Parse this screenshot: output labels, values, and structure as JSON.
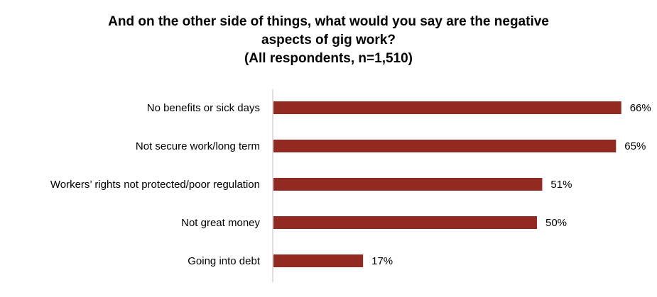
{
  "chart_data": {
    "type": "bar",
    "orientation": "horizontal",
    "title_lines": [
      "And on the other side of things, what would you say are the negative",
      "aspects of gig work?",
      "(All respondents, n=1,510)"
    ],
    "categories": [
      "No benefits or sick days",
      "Not secure work/long term",
      "Workers’ rights not protected/poor regulation",
      "Not great money",
      "Going into debt"
    ],
    "values": [
      66,
      65,
      51,
      50,
      17
    ],
    "value_labels": [
      "66%",
      "65%",
      "51%",
      "50%",
      "17%"
    ],
    "xlim": [
      0,
      70
    ],
    "bar_color": "#932a22",
    "axis_color": "#bfbfbf",
    "grid": false,
    "legend": "none"
  }
}
